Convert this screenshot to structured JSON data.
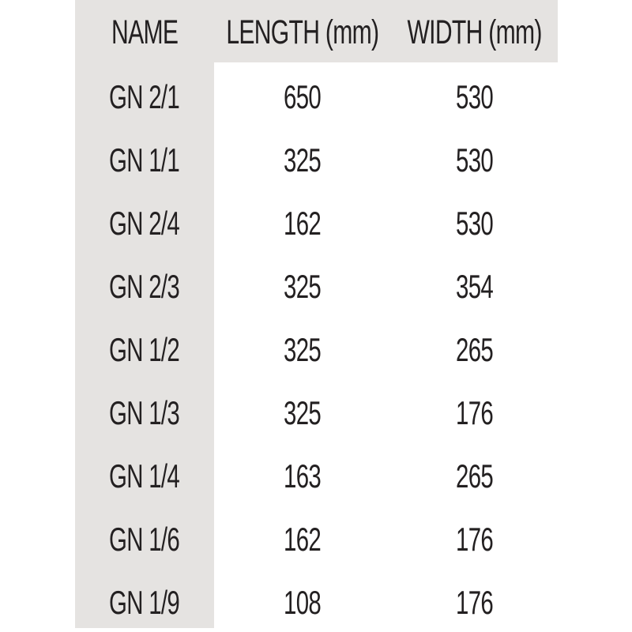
{
  "colors": {
    "band_gray": "#e5e3e1",
    "text": "#232021",
    "page_background": "#ffffff"
  },
  "table": {
    "columns": [
      {
        "label": "NAME"
      },
      {
        "label": "LENGTH (mm)"
      },
      {
        "label": "WIDTH (mm)"
      }
    ],
    "rows": [
      {
        "name": "GN 2/1",
        "length_mm": "650",
        "width_mm": "530"
      },
      {
        "name": "GN 1/1",
        "length_mm": "325",
        "width_mm": "530"
      },
      {
        "name": "GN 2/4",
        "length_mm": "162",
        "width_mm": "530"
      },
      {
        "name": "GN 2/3",
        "length_mm": "325",
        "width_mm": "354"
      },
      {
        "name": "GN 1/2",
        "length_mm": "325",
        "width_mm": "265"
      },
      {
        "name": "GN 1/3",
        "length_mm": "325",
        "width_mm": "176"
      },
      {
        "name": "GN 1/4",
        "length_mm": "163",
        "width_mm": "265"
      },
      {
        "name": "GN 1/6",
        "length_mm": "162",
        "width_mm": "176"
      },
      {
        "name": "GN 1/9",
        "length_mm": "108",
        "width_mm": "176"
      }
    ]
  }
}
